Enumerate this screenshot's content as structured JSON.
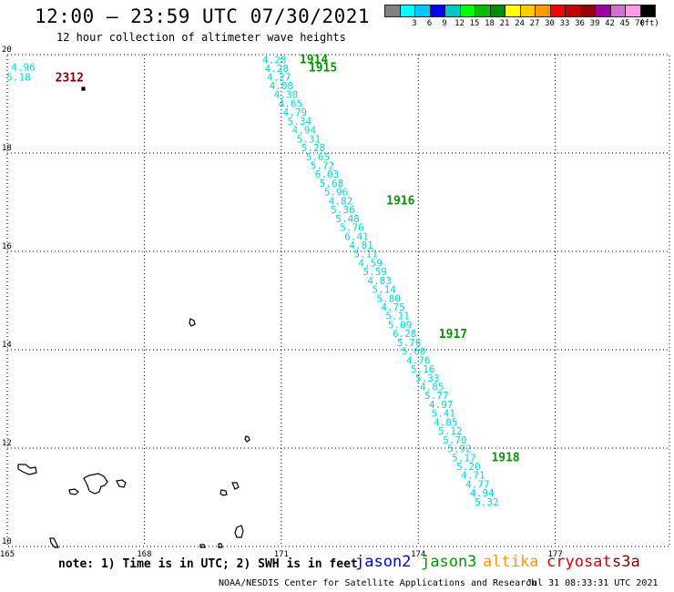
{
  "header": {
    "title": "12:00 – 23:59 UTC 07/30/2021",
    "subtitle": "12 hour collection of altimeter wave heights"
  },
  "colorbar": {
    "unit": "(ft)",
    "bins": [
      {
        "label": "",
        "color": "#808080"
      },
      {
        "label": "3",
        "color": "#00ffff"
      },
      {
        "label": "6",
        "color": "#00c8ff"
      },
      {
        "label": "9",
        "color": "#0000ff"
      },
      {
        "label": "12",
        "color": "#00c8c8"
      },
      {
        "label": "15",
        "color": "#00ff00"
      },
      {
        "label": "18",
        "color": "#00c000"
      },
      {
        "label": "21",
        "color": "#008c00"
      },
      {
        "label": "24",
        "color": "#ffff00"
      },
      {
        "label": "27",
        "color": "#ffcc00"
      },
      {
        "label": "30",
        "color": "#ff9900"
      },
      {
        "label": "33",
        "color": "#ff0000"
      },
      {
        "label": "36",
        "color": "#c80000"
      },
      {
        "label": "39",
        "color": "#960000"
      },
      {
        "label": "42",
        "color": "#a000a0"
      },
      {
        "label": "45",
        "color": "#d070d0"
      },
      {
        "label": "70",
        "color": "#ff99ee"
      },
      {
        "label": "",
        "color": "#000000"
      }
    ]
  },
  "map": {
    "lon_range": [
      165,
      179.5
    ],
    "lat_range": [
      10,
      20
    ],
    "x_ticks": [
      "165",
      "168",
      "171",
      "174",
      "177"
    ],
    "y_ticks": [
      "20",
      "18",
      "16",
      "14",
      "12",
      "10"
    ]
  },
  "tracks": [
    {
      "satellite": "jason3",
      "value_color": "#00d8d8",
      "points": [
        {
          "lon": 170.85,
          "lat": 19.9,
          "swh": "4.28"
        },
        {
          "lon": 170.9,
          "lat": 19.72,
          "swh": "4.28"
        },
        {
          "lon": 170.95,
          "lat": 19.55,
          "swh": "4.27"
        },
        {
          "lon": 171.0,
          "lat": 19.37,
          "swh": "4.08"
        },
        {
          "lon": 171.1,
          "lat": 19.19,
          "swh": "4.30"
        },
        {
          "lon": 171.2,
          "lat": 19.01,
          "swh": "4.65"
        },
        {
          "lon": 171.3,
          "lat": 18.83,
          "swh": "4.79"
        },
        {
          "lon": 171.4,
          "lat": 18.65,
          "swh": "5.34"
        },
        {
          "lon": 171.5,
          "lat": 18.47,
          "swh": "4.94"
        },
        {
          "lon": 171.6,
          "lat": 18.29,
          "swh": "5.31"
        },
        {
          "lon": 171.7,
          "lat": 18.11,
          "swh": "5.28"
        },
        {
          "lon": 171.8,
          "lat": 17.93,
          "swh": "5.65"
        },
        {
          "lon": 171.9,
          "lat": 17.75,
          "swh": "5.72"
        },
        {
          "lon": 172.0,
          "lat": 17.57,
          "swh": "6.03"
        },
        {
          "lon": 172.1,
          "lat": 17.39,
          "swh": "5.68"
        },
        {
          "lon": 172.2,
          "lat": 17.21,
          "swh": "5.96"
        },
        {
          "lon": 172.3,
          "lat": 17.03,
          "swh": "4.82"
        },
        {
          "lon": 172.35,
          "lat": 16.85,
          "swh": "5.36"
        },
        {
          "lon": 172.45,
          "lat": 16.67,
          "swh": "5.48"
        },
        {
          "lon": 172.55,
          "lat": 16.49,
          "swh": "5.76"
        },
        {
          "lon": 172.65,
          "lat": 16.31,
          "swh": "6.41"
        },
        {
          "lon": 172.75,
          "lat": 16.13,
          "swh": "4.81"
        },
        {
          "lon": 172.85,
          "lat": 15.95,
          "swh": "5.11"
        },
        {
          "lon": 172.95,
          "lat": 15.77,
          "swh": "4.59"
        },
        {
          "lon": 173.05,
          "lat": 15.59,
          "swh": "5.59"
        },
        {
          "lon": 173.15,
          "lat": 15.41,
          "swh": "4.83"
        },
        {
          "lon": 173.25,
          "lat": 15.23,
          "swh": "5.14"
        },
        {
          "lon": 173.35,
          "lat": 15.05,
          "swh": "5.80"
        },
        {
          "lon": 173.45,
          "lat": 14.87,
          "swh": "4.75"
        },
        {
          "lon": 173.55,
          "lat": 14.69,
          "swh": "5.11"
        },
        {
          "lon": 173.6,
          "lat": 14.51,
          "swh": "5.09"
        },
        {
          "lon": 173.7,
          "lat": 14.33,
          "swh": "6.28"
        },
        {
          "lon": 173.8,
          "lat": 14.15,
          "swh": "5.76"
        },
        {
          "lon": 173.9,
          "lat": 13.97,
          "swh": "5.60"
        },
        {
          "lon": 174.0,
          "lat": 13.79,
          "swh": "4.76"
        },
        {
          "lon": 174.1,
          "lat": 13.61,
          "swh": "5.16"
        },
        {
          "lon": 174.2,
          "lat": 13.43,
          "swh": "5.33"
        },
        {
          "lon": 174.3,
          "lat": 13.25,
          "swh": "4.85"
        },
        {
          "lon": 174.4,
          "lat": 13.07,
          "swh": "5.77"
        },
        {
          "lon": 174.5,
          "lat": 12.89,
          "swh": "4.97"
        },
        {
          "lon": 174.55,
          "lat": 12.71,
          "swh": "5.41"
        },
        {
          "lon": 174.6,
          "lat": 12.53,
          "swh": "4.85"
        },
        {
          "lon": 174.7,
          "lat": 12.35,
          "swh": "5.12"
        },
        {
          "lon": 174.8,
          "lat": 12.17,
          "swh": "5.70"
        },
        {
          "lon": 174.9,
          "lat": 11.99,
          "swh": "5.92"
        },
        {
          "lon": 175.0,
          "lat": 11.81,
          "swh": "5.17"
        },
        {
          "lon": 175.1,
          "lat": 11.63,
          "swh": "5.20"
        },
        {
          "lon": 175.2,
          "lat": 11.45,
          "swh": "4.71"
        },
        {
          "lon": 175.3,
          "lat": 11.27,
          "swh": "4.77"
        },
        {
          "lon": 175.4,
          "lat": 11.09,
          "swh": "4.94"
        },
        {
          "lon": 175.5,
          "lat": 10.91,
          "swh": "5.32"
        }
      ],
      "time_labels": [
        {
          "text": "1914",
          "lon": 171.4,
          "lat": 19.92
        },
        {
          "text": "1915",
          "lon": 171.6,
          "lat": 19.75
        },
        {
          "text": "1916",
          "lon": 173.3,
          "lat": 17.05
        },
        {
          "text": "1917",
          "lon": 174.45,
          "lat": 14.33
        },
        {
          "text": "1918",
          "lon": 175.6,
          "lat": 11.82
        }
      ]
    },
    {
      "satellite": "s3a",
      "value_color": "#00d8d8",
      "points": [
        {
          "lon": 165.35,
          "lat": 19.75,
          "swh": "4.96"
        },
        {
          "lon": 165.25,
          "lat": 19.55,
          "swh": "5.18"
        }
      ],
      "time_labels": [
        {
          "text": "2312",
          "lon": 166.05,
          "lat": 19.55
        }
      ]
    }
  ],
  "footer": {
    "note": "note: 1) Time is in UTC; 2) SWH is in feet",
    "credit": "NOAA/NESDIS Center for Satellite Applications and Research",
    "generated": "Jul 31 08:33:31 UTC 2021",
    "satellites": [
      {
        "name": "jason2",
        "color": "#0000dd"
      },
      {
        "name": "jason3",
        "color": "#009900"
      },
      {
        "name": "altika",
        "color": "#ff9900"
      },
      {
        "name": "cryosat",
        "color": "#dd0000"
      },
      {
        "name": "s3a",
        "color": "#880000"
      }
    ]
  }
}
